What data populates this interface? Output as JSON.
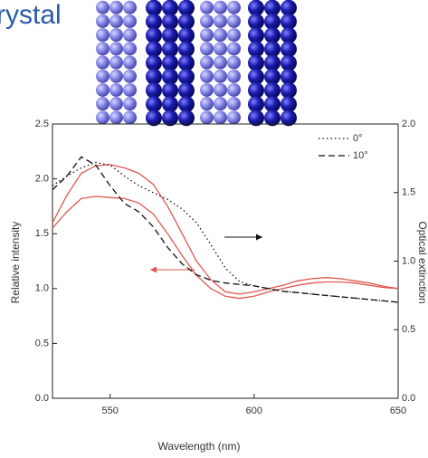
{
  "chart_data": {
    "type": "line",
    "title": "rystal",
    "x_label": "Wavelength (nm)",
    "y_label": "Relative intensity",
    "y2_label": "Optical extinction",
    "x": [
      530,
      535,
      540,
      545,
      550,
      555,
      560,
      565,
      570,
      575,
      580,
      585,
      590,
      595,
      600,
      605,
      610,
      615,
      620,
      625,
      630,
      635,
      640,
      645,
      650
    ],
    "xlim": [
      530,
      650
    ],
    "xticks": [
      550,
      600,
      650
    ],
    "ylim": [
      0,
      2.5
    ],
    "yticks": [
      {
        "value": 0,
        "label": "0.0"
      },
      0.5,
      {
        "value": 1,
        "label": "1.0"
      },
      1.5,
      {
        "value": 2,
        "label": "2.0"
      },
      2.5
    ],
    "y2lim": [
      0,
      2
    ],
    "y2ticks": [
      {
        "value": 0,
        "label": "0.0"
      },
      0.5,
      {
        "value": 1,
        "label": "1.0"
      },
      1.5,
      {
        "value": 2,
        "label": "2.0"
      }
    ],
    "legend": "top-right",
    "series": [
      {
        "color": "#e0574f",
        "line_style": "solid",
        "values": [
          1.6,
          1.85,
          2.05,
          2.12,
          2.13,
          2.1,
          2.05,
          1.95,
          1.75,
          1.5,
          1.25,
          1.08,
          0.97,
          0.95,
          0.97,
          1.0,
          1.03,
          1.07,
          1.09,
          1.1,
          1.09,
          1.07,
          1.05,
          1.02,
          1.0
        ]
      },
      {
        "color": "#e0574f",
        "line_style": "solid",
        "values": [
          1.55,
          1.7,
          1.82,
          1.84,
          1.83,
          1.82,
          1.78,
          1.68,
          1.5,
          1.3,
          1.12,
          1.0,
          0.93,
          0.91,
          0.93,
          0.97,
          1.0,
          1.03,
          1.05,
          1.06,
          1.06,
          1.05,
          1.03,
          1.01,
          1.0
        ]
      },
      {
        "name": "0°",
        "color": "#111111",
        "line_style": "dotted",
        "axis": "y2",
        "values": [
          1.55,
          1.62,
          1.68,
          1.72,
          1.7,
          1.62,
          1.55,
          1.5,
          1.45,
          1.38,
          1.28,
          1.12,
          0.95,
          0.85,
          0.82,
          0.8,
          0.78,
          0.77,
          0.76,
          0.75,
          0.74,
          0.73,
          0.72,
          0.71,
          0.7
        ]
      },
      {
        "name": "10°",
        "color": "#111111",
        "line_style": "dashed",
        "axis": "y2",
        "values": [
          1.52,
          1.62,
          1.76,
          1.7,
          1.55,
          1.42,
          1.36,
          1.25,
          1.1,
          0.98,
          0.9,
          0.86,
          0.84,
          0.83,
          0.82,
          0.8,
          0.78,
          0.77,
          0.76,
          0.75,
          0.74,
          0.73,
          0.72,
          0.71,
          0.7
        ]
      }
    ]
  }
}
